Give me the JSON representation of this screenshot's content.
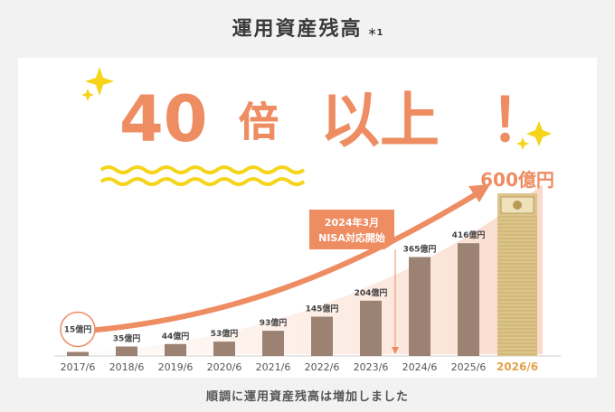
{
  "header": {
    "title": "運用資産残高",
    "note": "＊1"
  },
  "headline": {
    "number": "40",
    "multiplier": "倍",
    "rest": "以上",
    "exclaim": "！"
  },
  "annotation": {
    "line1": "2024年3月",
    "line2": "NISA対応開始"
  },
  "caption": "順調に運用資産残高は増加しました",
  "colors": {
    "bar": "#9b8272",
    "highlight_bar": "#dcc48a",
    "accent": "#ee8c62",
    "wave": "#f5d419",
    "axis_highlight": "#e3a24a",
    "axis_text": "#555555"
  },
  "chart_data": {
    "type": "bar",
    "categories": [
      "2017/6",
      "2018/6",
      "2019/6",
      "2020/6",
      "2021/6",
      "2022/6",
      "2023/6",
      "2024/6",
      "2025/6",
      "2026/6"
    ],
    "values": [
      15,
      35,
      44,
      53,
      93,
      145,
      204,
      365,
      416,
      600
    ],
    "labels": [
      "15億円",
      "35億円",
      "44億円",
      "53億円",
      "93億円",
      "145億円",
      "204億円",
      "365億円",
      "416億円",
      "600億円"
    ],
    "highlight_index": 9,
    "ylim": [
      0,
      600
    ]
  }
}
